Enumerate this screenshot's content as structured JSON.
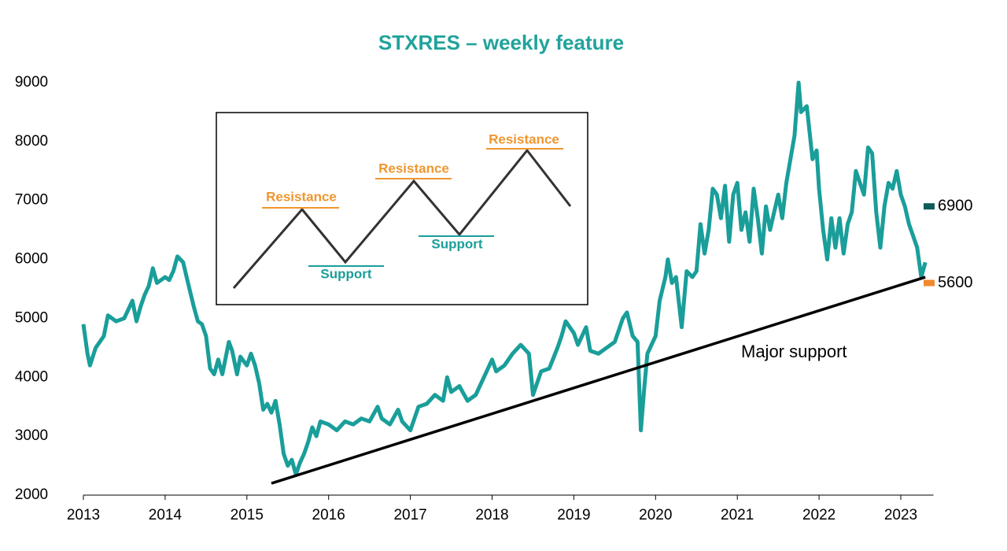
{
  "chart_data": {
    "type": "line",
    "title": "STXRES – weekly feature",
    "color": "#1a9e9a",
    "xlim": [
      2013,
      2023.4
    ],
    "xticks": [
      2013,
      2014,
      2015,
      2016,
      2017,
      2018,
      2019,
      2020,
      2021,
      2022,
      2023
    ],
    "ylim": [
      2000,
      9000
    ],
    "yticks": [
      2000,
      3000,
      4000,
      5000,
      6000,
      7000,
      8000,
      9000
    ],
    "x": [
      2013.0,
      2013.05,
      2013.08,
      2013.15,
      2013.25,
      2013.3,
      2013.4,
      2013.5,
      2013.6,
      2013.65,
      2013.7,
      2013.75,
      2013.8,
      2013.85,
      2013.9,
      2014.0,
      2014.05,
      2014.1,
      2014.15,
      2014.22,
      2014.28,
      2014.35,
      2014.4,
      2014.45,
      2014.5,
      2014.55,
      2014.6,
      2014.65,
      2014.7,
      2014.78,
      2014.82,
      2014.88,
      2014.92,
      2015.0,
      2015.05,
      2015.1,
      2015.15,
      2015.2,
      2015.25,
      2015.3,
      2015.35,
      2015.4,
      2015.45,
      2015.5,
      2015.55,
      2015.6,
      2015.65,
      2015.7,
      2015.75,
      2015.8,
      2015.85,
      2015.9,
      2016.0,
      2016.1,
      2016.2,
      2016.3,
      2016.4,
      2016.5,
      2016.6,
      2016.65,
      2016.75,
      2016.85,
      2016.9,
      2017.0,
      2017.05,
      2017.1,
      2017.2,
      2017.3,
      2017.4,
      2017.45,
      2017.5,
      2017.6,
      2017.7,
      2017.8,
      2017.9,
      2018.0,
      2018.05,
      2018.15,
      2018.25,
      2018.35,
      2018.45,
      2018.5,
      2018.6,
      2018.7,
      2018.8,
      2018.85,
      2018.9,
      2019.0,
      2019.05,
      2019.15,
      2019.2,
      2019.3,
      2019.4,
      2019.5,
      2019.6,
      2019.65,
      2019.72,
      2019.78,
      2019.82,
      2019.86,
      2019.9,
      2020.0,
      2020.05,
      2020.12,
      2020.15,
      2020.2,
      2020.25,
      2020.32,
      2020.38,
      2020.45,
      2020.5,
      2020.55,
      2020.6,
      2020.65,
      2020.7,
      2020.75,
      2020.8,
      2020.85,
      2020.9,
      2020.95,
      2021.0,
      2021.05,
      2021.1,
      2021.15,
      2021.2,
      2021.25,
      2021.3,
      2021.35,
      2021.4,
      2021.5,
      2021.55,
      2021.6,
      2021.65,
      2021.7,
      2021.75,
      2021.78,
      2021.85,
      2021.92,
      2021.97,
      2022.0,
      2022.05,
      2022.1,
      2022.15,
      2022.2,
      2022.25,
      2022.3,
      2022.35,
      2022.4,
      2022.45,
      2022.5,
      2022.55,
      2022.6,
      2022.65,
      2022.7,
      2022.75,
      2022.8,
      2022.85,
      2022.9,
      2022.95,
      2023.0,
      2023.05,
      2023.1,
      2023.15,
      2023.2,
      2023.25,
      2023.3
    ],
    "values": [
      4900,
      4400,
      4200,
      4500,
      4700,
      5050,
      4950,
      5000,
      5300,
      4950,
      5200,
      5400,
      5550,
      5850,
      5600,
      5700,
      5650,
      5800,
      6050,
      5950,
      5600,
      5200,
      4950,
      4900,
      4700,
      4150,
      4050,
      4300,
      4050,
      4600,
      4450,
      4050,
      4350,
      4200,
      4400,
      4200,
      3900,
      3450,
      3550,
      3400,
      3600,
      3200,
      2700,
      2500,
      2600,
      2350,
      2550,
      2700,
      2900,
      3150,
      3000,
      3250,
      3200,
      3100,
      3250,
      3200,
      3300,
      3250,
      3500,
      3300,
      3200,
      3450,
      3250,
      3100,
      3300,
      3500,
      3550,
      3700,
      3600,
      4000,
      3750,
      3850,
      3600,
      3700,
      4000,
      4300,
      4100,
      4200,
      4400,
      4550,
      4400,
      3700,
      4100,
      4150,
      4500,
      4700,
      4950,
      4750,
      4550,
      4850,
      4450,
      4400,
      4500,
      4600,
      5000,
      5100,
      4700,
      4600,
      3100,
      3800,
      4400,
      4700,
      5300,
      5700,
      6000,
      5600,
      5700,
      4850,
      5800,
      5700,
      5800,
      6600,
      6100,
      6500,
      7200,
      7100,
      6700,
      7250,
      6300,
      7100,
      7300,
      6500,
      6800,
      6300,
      7200,
      6700,
      6100,
      6900,
      6500,
      7100,
      6700,
      7300,
      7700,
      8100,
      9000,
      8500,
      8600,
      7700,
      7850,
      7200,
      6500,
      6000,
      6700,
      6200,
      6700,
      6100,
      6600,
      6800,
      7500,
      7300,
      7100,
      7900,
      7800,
      6800,
      6200,
      6900,
      7300,
      7200,
      7500,
      7100,
      6900,
      6600,
      6400,
      6200,
      5700,
      5950
    ],
    "trendline": {
      "x": [
        2015.3,
        2023.3
      ],
      "values": [
        2200,
        5700
      ],
      "label": "Major support"
    },
    "levels": [
      {
        "value": 6900,
        "color": "#0f5a5a"
      },
      {
        "value": 5600,
        "color": "#f08a2e"
      }
    ],
    "inset_labels": [
      "Resistance",
      "Support",
      "Resistance",
      "Support",
      "Resistance"
    ]
  }
}
